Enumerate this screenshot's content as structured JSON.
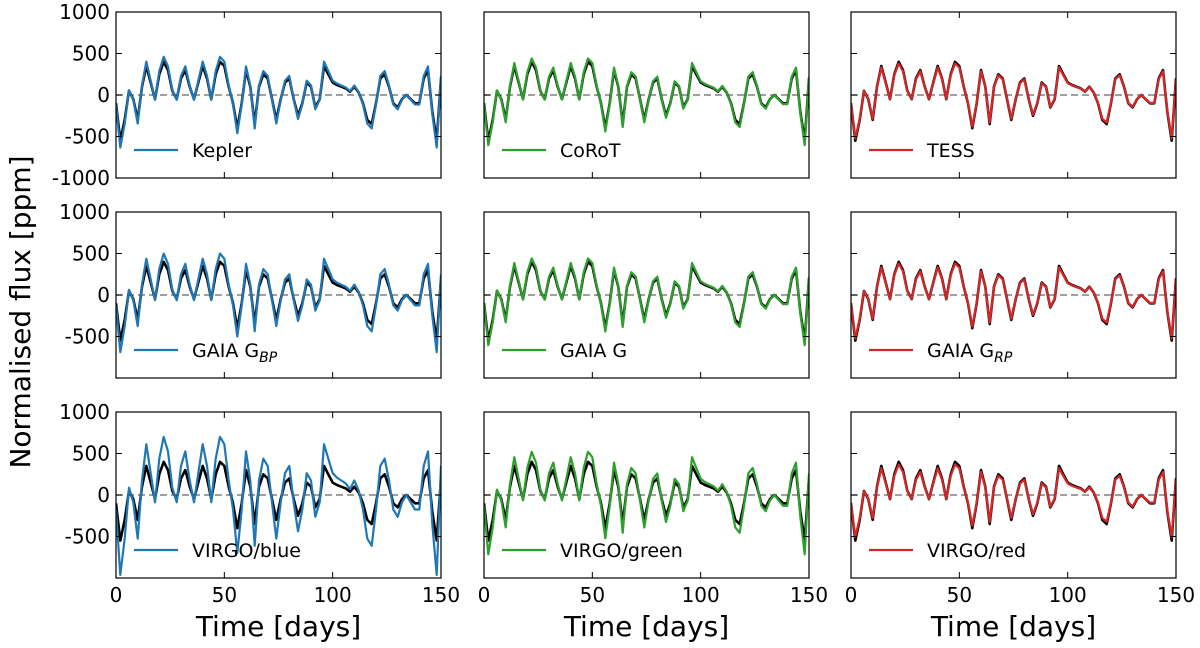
{
  "figure": {
    "ylabel": "Normalised flux [ppm]",
    "xlabel": "Time [days]",
    "reference_color": "#000000",
    "zero_line_color": "#808080"
  },
  "chart_data": {
    "type": "line",
    "layout": "3x3 grid",
    "xlabel": "Time [days]",
    "ylabel": "Normalised flux [ppm]",
    "xlim": [
      0,
      150
    ],
    "ylim": [
      -1000,
      1000
    ],
    "xticks": [
      0,
      50,
      100,
      150
    ],
    "yticks": [
      -1000,
      -500,
      0,
      500,
      1000
    ],
    "x": [
      0,
      2,
      4,
      6,
      8,
      10,
      12,
      14,
      16,
      18,
      20,
      22,
      24,
      26,
      28,
      30,
      32,
      34,
      36,
      38,
      40,
      42,
      44,
      46,
      48,
      50,
      52,
      54,
      56,
      58,
      60,
      62,
      64,
      66,
      68,
      70,
      72,
      74,
      76,
      78,
      80,
      82,
      84,
      86,
      88,
      90,
      92,
      94,
      96,
      98,
      100,
      102,
      104,
      106,
      108,
      110,
      112,
      114,
      116,
      118,
      120,
      122,
      124,
      126,
      128,
      130,
      132,
      134,
      136,
      138,
      140,
      142,
      144,
      146,
      148,
      150
    ],
    "reference": {
      "name": "reference (black)",
      "color": "#000000",
      "values": [
        -100,
        -550,
        -300,
        50,
        -50,
        -300,
        100,
        350,
        150,
        -50,
        250,
        400,
        300,
        50,
        -50,
        200,
        300,
        100,
        -50,
        150,
        350,
        200,
        -50,
        250,
        400,
        350,
        100,
        -100,
        -400,
        -100,
        300,
        100,
        -350,
        100,
        250,
        200,
        -50,
        -300,
        -50,
        150,
        200,
        -50,
        -250,
        -100,
        150,
        100,
        -150,
        -50,
        350,
        250,
        150,
        120,
        100,
        80,
        40,
        100,
        30,
        -100,
        -300,
        -350,
        -100,
        200,
        250,
        100,
        -100,
        -150,
        -50,
        0,
        -50,
        -100,
        -100,
        200,
        300,
        -200,
        -550,
        200
      ]
    },
    "panels": [
      {
        "label": "Kepler",
        "color": "#1f77b4",
        "scale": 1.15,
        "offset": 0
      },
      {
        "label": "CoRoT",
        "color": "#2ca02c",
        "scale": 1.1,
        "offset": 0
      },
      {
        "label": "TESS",
        "color": "#d62728",
        "scale": 0.95,
        "offset": 0
      },
      {
        "label": "GAIA G",
        "sub": "BP",
        "color": "#1f77b4",
        "scale": 1.25,
        "offset": 0
      },
      {
        "label": "GAIA G",
        "sub": "",
        "color": "#2ca02c",
        "scale": 1.1,
        "offset": 0
      },
      {
        "label": "GAIA G",
        "sub": "RP",
        "color": "#d62728",
        "scale": 0.95,
        "offset": 0
      },
      {
        "label": "VIRGO/blue",
        "color": "#1f77b4",
        "scale": 1.75,
        "offset": 0
      },
      {
        "label": "VIRGO/green",
        "color": "#2ca02c",
        "scale": 1.3,
        "offset": 0
      },
      {
        "label": "VIRGO/red",
        "color": "#d62728",
        "scale": 0.92,
        "offset": 0
      }
    ]
  }
}
